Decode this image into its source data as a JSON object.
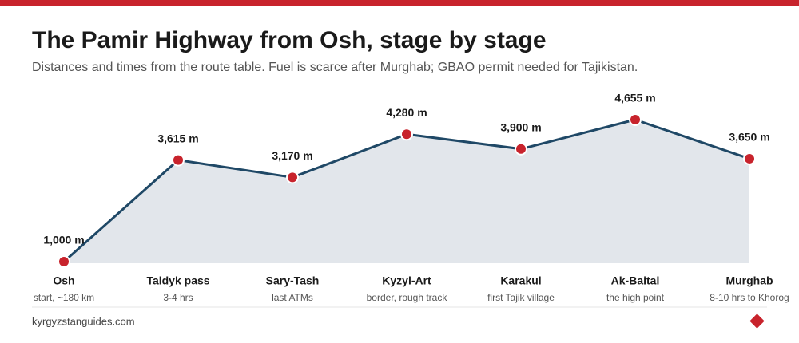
{
  "chart_data": {
    "type": "area",
    "title": "The Pamir Highway from Osh, stage by stage",
    "subtitle": "Distances and times from the route table. Fuel is scarce after Murghab; GBAO permit needed for Tajikistan.",
    "categories": [
      "Osh",
      "Taldyk pass",
      "Sary-Tash",
      "Kyzyl-Art",
      "Karakul",
      "Ak-Baital",
      "Murghab"
    ],
    "category_notes": [
      "start, ~180 km",
      "3-4 hrs",
      "last ATMs",
      "border, rough track",
      "first Tajik village",
      "the high point",
      "8-10 hrs to Khorog"
    ],
    "values": [
      1000,
      3615,
      3170,
      4280,
      3900,
      4655,
      3650
    ],
    "value_labels": [
      "1,000 m",
      "3,615 m",
      "3,170 m",
      "4,280 m",
      "3,900 m",
      "4,655 m",
      "3,650 m"
    ],
    "ylim": [
      1000,
      4655
    ],
    "color": "#1f4866",
    "fill": "#e2e6eb",
    "marker_color": "#c8232c",
    "source": "kyrgyzstanguides.com"
  }
}
